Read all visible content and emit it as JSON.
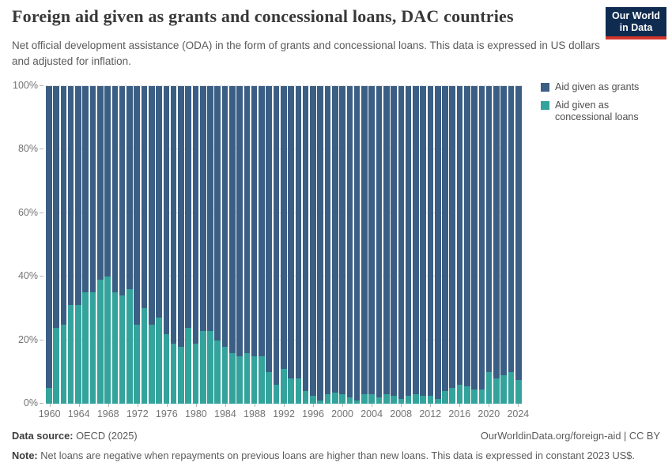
{
  "header": {
    "title": "Foreign aid given as grants and concessional loans, DAC countries",
    "subtitle": "Net official development assistance (ODA) in the form of grants and concessional loans. This data is expressed in US dollars and adjusted for inflation.",
    "logo": {
      "line1": "Our World",
      "line2": "in Data"
    }
  },
  "legend": [
    {
      "label": "Aid given as grants",
      "color": "#3b5e84"
    },
    {
      "label": "Aid given as concessional loans",
      "color": "#33a39c"
    }
  ],
  "chart_data": {
    "type": "bar",
    "stacked": true,
    "unit": "%",
    "title": "Foreign aid given as grants and concessional loans, DAC countries",
    "xlabel": "",
    "ylabel": "",
    "ylim": [
      0,
      100
    ],
    "grid": "dashed-horizontal",
    "legend_position": "right",
    "categories": [
      1960,
      1961,
      1962,
      1963,
      1964,
      1965,
      1966,
      1967,
      1968,
      1969,
      1970,
      1971,
      1972,
      1973,
      1974,
      1975,
      1976,
      1977,
      1978,
      1979,
      1980,
      1981,
      1982,
      1983,
      1984,
      1985,
      1986,
      1987,
      1988,
      1989,
      1990,
      1991,
      1992,
      1993,
      1994,
      1995,
      1996,
      1997,
      1998,
      1999,
      2000,
      2001,
      2002,
      2003,
      2004,
      2005,
      2006,
      2007,
      2008,
      2009,
      2010,
      2011,
      2012,
      2013,
      2014,
      2015,
      2016,
      2017,
      2018,
      2019,
      2020,
      2021,
      2022,
      2023,
      2024
    ],
    "series": [
      {
        "name": "Aid given as grants",
        "color": "#3b5e84",
        "values": [
          95,
          76,
          75,
          69,
          69,
          65,
          65,
          61,
          60,
          65,
          66,
          64,
          75,
          70,
          75,
          73,
          78,
          81,
          82,
          76,
          81,
          77,
          77,
          80,
          82,
          84,
          85,
          84,
          85,
          85,
          90,
          94,
          89,
          92,
          92,
          96,
          97.5,
          99,
          97,
          96.5,
          97,
          98,
          99,
          97,
          97,
          98,
          97,
          97.5,
          98.5,
          97.5,
          97,
          97.5,
          97.5,
          98.5,
          96,
          95,
          94,
          94.5,
          95.5,
          95.5,
          90,
          92,
          91,
          90,
          92.5
        ]
      },
      {
        "name": "Aid given as concessional loans",
        "color": "#33a39c",
        "values": [
          5,
          24,
          25,
          31,
          31,
          35,
          35,
          39,
          40,
          35,
          34,
          36,
          25,
          30,
          25,
          27,
          22,
          19,
          18,
          24,
          19,
          23,
          23,
          20,
          18,
          16,
          15,
          16,
          15,
          15,
          10,
          6,
          11,
          8,
          8,
          4,
          2.5,
          1,
          3,
          3.5,
          3,
          2,
          1,
          3,
          3,
          2,
          3,
          2.5,
          1.5,
          2.5,
          3,
          2.5,
          2.5,
          1.5,
          4,
          5,
          6,
          5.5,
          4.5,
          4.5,
          10,
          8,
          9,
          10,
          7.5
        ]
      }
    ],
    "yticks": [
      "0%",
      "20%",
      "40%",
      "60%",
      "80%",
      "100%"
    ],
    "xticks": [
      1960,
      1964,
      1968,
      1972,
      1976,
      1980,
      1984,
      1988,
      1992,
      1996,
      2000,
      2004,
      2008,
      2012,
      2016,
      2020,
      2024
    ]
  },
  "footer": {
    "source_label": "Data source:",
    "source_value": " OECD (2025)",
    "link": "OurWorldinData.org/foreign-aid | CC BY",
    "note_label": "Note:",
    "note_value": " Net loans are negative when repayments on previous loans are higher than new loans. This data is expressed in constant 2023 US$."
  }
}
